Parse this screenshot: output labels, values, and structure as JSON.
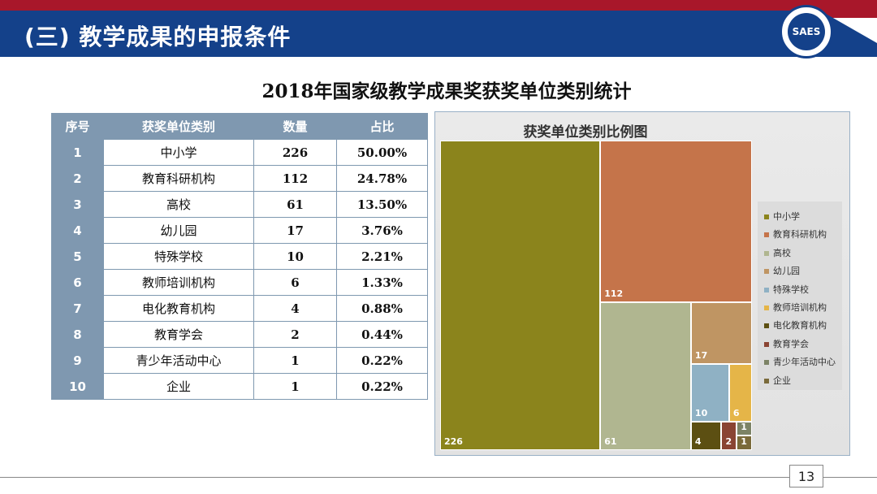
{
  "header": {
    "title": "(三) 教学成果的申报条件",
    "logo_text": "SAES"
  },
  "heading": "2018年国家级教学成果奖获奖单位类别统计",
  "table": {
    "headers": [
      "序号",
      "获奖单位类别",
      "数量",
      "占比"
    ],
    "rows": [
      [
        "1",
        "中小学",
        "226",
        "50.00%"
      ],
      [
        "2",
        "教育科研机构",
        "112",
        "24.78%"
      ],
      [
        "3",
        "高校",
        "61",
        "13.50%"
      ],
      [
        "4",
        "幼儿园",
        "17",
        "3.76%"
      ],
      [
        "5",
        "特殊学校",
        "10",
        "2.21%"
      ],
      [
        "6",
        "教师培训机构",
        "6",
        "1.33%"
      ],
      [
        "7",
        "电化教育机构",
        "4",
        "0.88%"
      ],
      [
        "8",
        "教育学会",
        "2",
        "0.44%"
      ],
      [
        "9",
        "青少年活动中心",
        "1",
        "0.22%"
      ],
      [
        "10",
        "企业",
        "1",
        "0.22%"
      ]
    ]
  },
  "chart_data": {
    "type": "treemap",
    "title": "获奖单位类别比例图",
    "categories": [
      "中小学",
      "教育科研机构",
      "高校",
      "幼儿园",
      "特殊学校",
      "教师培训机构",
      "电化教育机构",
      "教育学会",
      "青少年活动中心",
      "企业"
    ],
    "values": [
      226,
      112,
      61,
      17,
      10,
      6,
      4,
      2,
      1,
      1
    ],
    "colors": [
      "#8b841c",
      "#c5744a",
      "#b0b690",
      "#bf9563",
      "#8fb1c4",
      "#e5b548",
      "#5c4f12",
      "#8a4433",
      "#7c8366",
      "#7a6a3a"
    ],
    "legend_position": "right"
  },
  "footer": {
    "page_number": "13"
  }
}
